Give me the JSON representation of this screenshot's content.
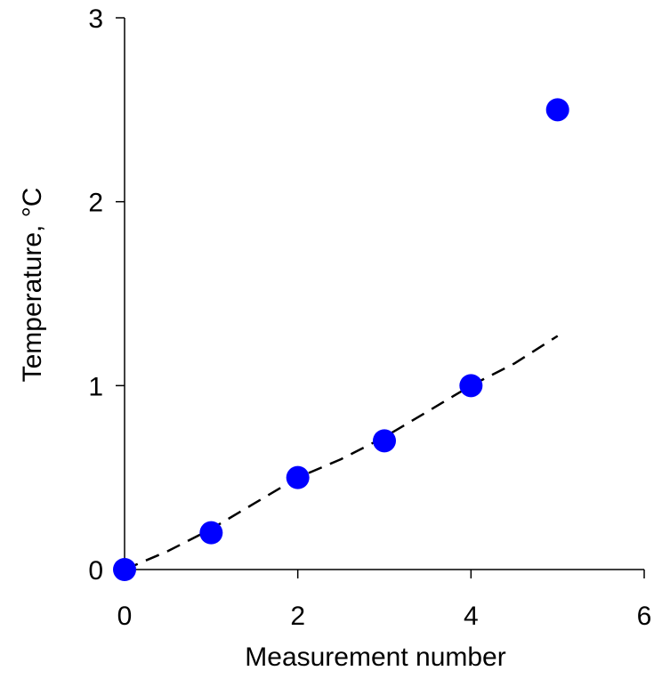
{
  "chart_data": {
    "type": "scatter",
    "title": "",
    "xlabel": "Measurement number",
    "ylabel": "Temperature, °C",
    "xlim": [
      0,
      6
    ],
    "ylim": [
      0,
      3
    ],
    "x_ticks": [
      "0",
      "2",
      "4",
      "6"
    ],
    "y_ticks": [
      "0",
      "1",
      "2",
      "3"
    ],
    "grid": false,
    "legend": "none",
    "series": [
      {
        "type": "scatter",
        "color": "#0000ff",
        "points": [
          {
            "x": 0,
            "y": 0.0
          },
          {
            "x": 1,
            "y": 0.2
          },
          {
            "x": 2,
            "y": 0.5
          },
          {
            "x": 3,
            "y": 0.7
          },
          {
            "x": 4,
            "y": 1.0
          },
          {
            "x": 5,
            "y": 2.5
          }
        ]
      },
      {
        "type": "line",
        "style": "dashed",
        "color": "#000000",
        "points": [
          {
            "x": 0,
            "y": 0.0
          },
          {
            "x": 0.5,
            "y": 0.1
          },
          {
            "x": 1,
            "y": 0.22
          },
          {
            "x": 1.5,
            "y": 0.36
          },
          {
            "x": 2,
            "y": 0.5
          },
          {
            "x": 2.5,
            "y": 0.6
          },
          {
            "x": 3,
            "y": 0.72
          },
          {
            "x": 3.5,
            "y": 0.86
          },
          {
            "x": 4,
            "y": 1.0
          },
          {
            "x": 4.5,
            "y": 1.12
          },
          {
            "x": 5,
            "y": 1.27
          }
        ]
      }
    ]
  }
}
